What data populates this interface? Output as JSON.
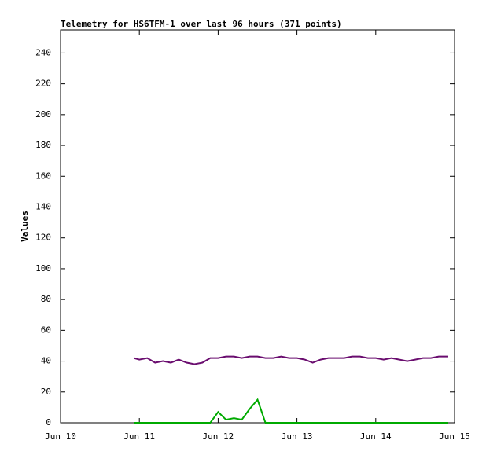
{
  "chart_data": {
    "type": "line",
    "title": "Telemetry for HS6TFM-1 over last 96 hours (371 points)",
    "y_label": "Values",
    "x": [
      10.93,
      11.0,
      11.1,
      11.2,
      11.3,
      11.4,
      11.5,
      11.6,
      11.7,
      11.8,
      11.9,
      12.0,
      12.1,
      12.2,
      12.3,
      12.4,
      12.5,
      12.6,
      12.7,
      12.8,
      12.9,
      13.0,
      13.1,
      13.2,
      13.3,
      13.4,
      13.5,
      13.6,
      13.7,
      13.8,
      13.9,
      14.0,
      14.1,
      14.2,
      14.3,
      14.4,
      14.5,
      14.6,
      14.7,
      14.8,
      14.92
    ],
    "series": [
      {
        "color": "#6a0d6f",
        "values": [
          42,
          41,
          42,
          39,
          40,
          39,
          41,
          39,
          38,
          39,
          42,
          42,
          43,
          43,
          42,
          43,
          43,
          42,
          42,
          43,
          42,
          42,
          41,
          39,
          41,
          42,
          42,
          42,
          43,
          43,
          42,
          42,
          41,
          42,
          41,
          40,
          41,
          42,
          42,
          43,
          43
        ]
      },
      {
        "color": "#00aa00",
        "values": [
          0,
          0,
          0,
          0,
          0,
          0,
          0,
          0,
          0,
          0,
          0,
          7,
          2,
          3,
          2,
          9,
          15,
          0,
          0,
          0,
          0,
          0,
          0,
          0,
          0,
          0,
          0,
          0,
          0,
          0,
          0,
          0,
          0,
          0,
          0,
          0,
          0,
          0,
          0,
          0,
          0
        ]
      }
    ],
    "xlim": [
      10,
      15
    ],
    "xticks": [
      {
        "value": 10,
        "label": "Jun 10"
      },
      {
        "value": 11,
        "label": "Jun 11"
      },
      {
        "value": 12,
        "label": "Jun 12"
      },
      {
        "value": 13,
        "label": "Jun 13"
      },
      {
        "value": 14,
        "label": "Jun 14"
      },
      {
        "value": 15,
        "label": "Jun 15"
      }
    ],
    "ylim": [
      0,
      255
    ],
    "yticks": [
      0,
      20,
      40,
      60,
      80,
      100,
      120,
      140,
      160,
      180,
      200,
      220,
      240
    ]
  }
}
